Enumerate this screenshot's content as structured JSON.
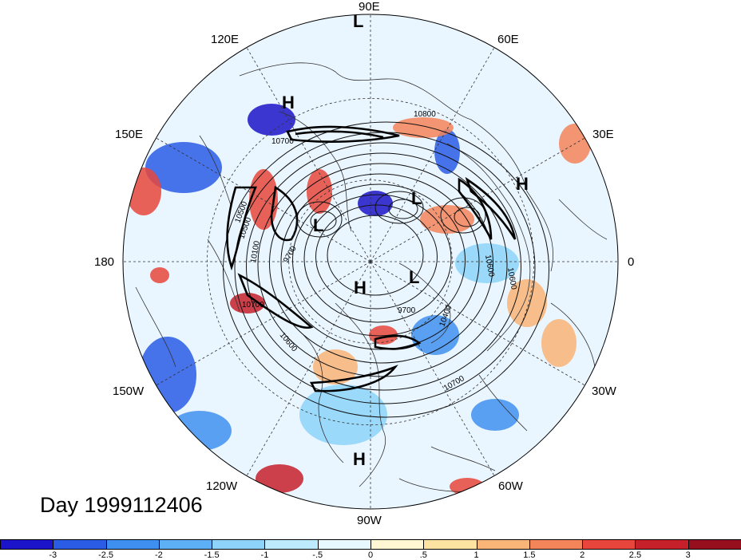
{
  "title": "Day 1999112406",
  "longitude_labels": {
    "deg90e": "90E",
    "deg60e": "60E",
    "deg30e": "30E",
    "deg0": "0",
    "deg30w": "30W",
    "deg60w": "60W",
    "deg90w": "90W",
    "deg120w": "120W",
    "deg150w": "150W",
    "deg180": "180",
    "deg150e": "150E",
    "deg120e": "120E"
  },
  "pressure_centers": [
    "L",
    "H",
    "L",
    "H",
    "L",
    "L",
    "H",
    "H"
  ],
  "contour_labels": [
    "10800",
    "10700",
    "10600",
    "10500",
    "10100",
    "9700",
    "9700",
    "10400",
    "10700",
    "10600",
    "10500",
    "10700",
    "10600"
  ],
  "colorbar": {
    "ticks": [
      "-3",
      "-2.5",
      "-2",
      "-1.5",
      "-1",
      "-.5",
      "0",
      ".5",
      "1",
      "1.5",
      "2",
      "2.5",
      "3"
    ],
    "colors": [
      "#1c14c8",
      "#2a5ce6",
      "#3f8ff0",
      "#5eb0f6",
      "#8dd3fa",
      "#bdebfd",
      "#e8f8ff",
      "#fff7d4",
      "#fde3a2",
      "#f9b478",
      "#f4845a",
      "#e8463c",
      "#c6202a",
      "#960f1e"
    ]
  },
  "anomaly_patches": [
    {
      "color": "#2a5ce6"
    },
    {
      "color": "#2a5ce6"
    },
    {
      "color": "#3f8ff0"
    },
    {
      "color": "#1c14c8"
    },
    {
      "color": "#2a5ce6"
    },
    {
      "color": "#1c14c8"
    },
    {
      "color": "#3f8ff0"
    },
    {
      "color": "#8dd3fa"
    },
    {
      "color": "#c6202a"
    },
    {
      "color": "#e8463c"
    },
    {
      "color": "#f4845a"
    },
    {
      "color": "#e8463c"
    },
    {
      "color": "#c6202a"
    },
    {
      "color": "#e8463c"
    },
    {
      "color": "#f9b478"
    },
    {
      "color": "#e8463c"
    },
    {
      "color": "#f4845a"
    },
    {
      "color": "#f9b478"
    },
    {
      "color": "#e8463c"
    },
    {
      "color": "#f4845a"
    },
    {
      "color": "#8dd3fa"
    },
    {
      "color": "#f9b478"
    },
    {
      "color": "#3f8ff0"
    },
    {
      "color": "#e8463c"
    }
  ]
}
